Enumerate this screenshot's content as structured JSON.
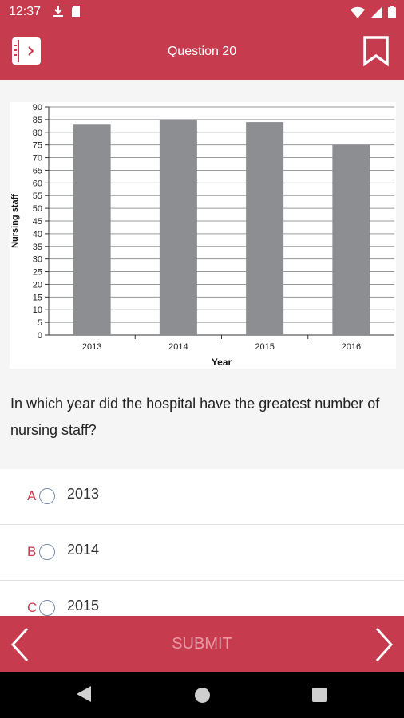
{
  "status_bar": {
    "time": "12:37",
    "icons_left": [
      "download-icon",
      "sd-card-icon"
    ],
    "icons_right": [
      "wifi-icon",
      "signal-icon",
      "battery-icon"
    ]
  },
  "app_bar": {
    "title": "Question 20",
    "menu_icon": "book-menu-icon",
    "bookmark_icon": "bookmark-icon"
  },
  "question": {
    "text": "In which year did the hospital have the greatest number of nursing staff?"
  },
  "chart_data": {
    "type": "bar",
    "categories": [
      "2013",
      "2014",
      "2015",
      "2016"
    ],
    "values": [
      83,
      85,
      84,
      75
    ],
    "xlabel": "Year",
    "ylabel": "Nursing staff",
    "ylim": [
      0,
      90
    ],
    "yticks": [
      0,
      5,
      10,
      15,
      20,
      25,
      30,
      35,
      40,
      45,
      50,
      55,
      60,
      65,
      70,
      75,
      80,
      85,
      90
    ],
    "grid": true,
    "bar_color": "#8d8e91"
  },
  "options": [
    {
      "letter": "A",
      "label": "2013"
    },
    {
      "letter": "B",
      "label": "2014"
    },
    {
      "letter": "C",
      "label": "2015"
    }
  ],
  "bottom_bar": {
    "submit_label": "SUBMIT"
  },
  "colors": {
    "accent": "#c73b4f",
    "submit_text_disabled": "#e69ba6"
  }
}
